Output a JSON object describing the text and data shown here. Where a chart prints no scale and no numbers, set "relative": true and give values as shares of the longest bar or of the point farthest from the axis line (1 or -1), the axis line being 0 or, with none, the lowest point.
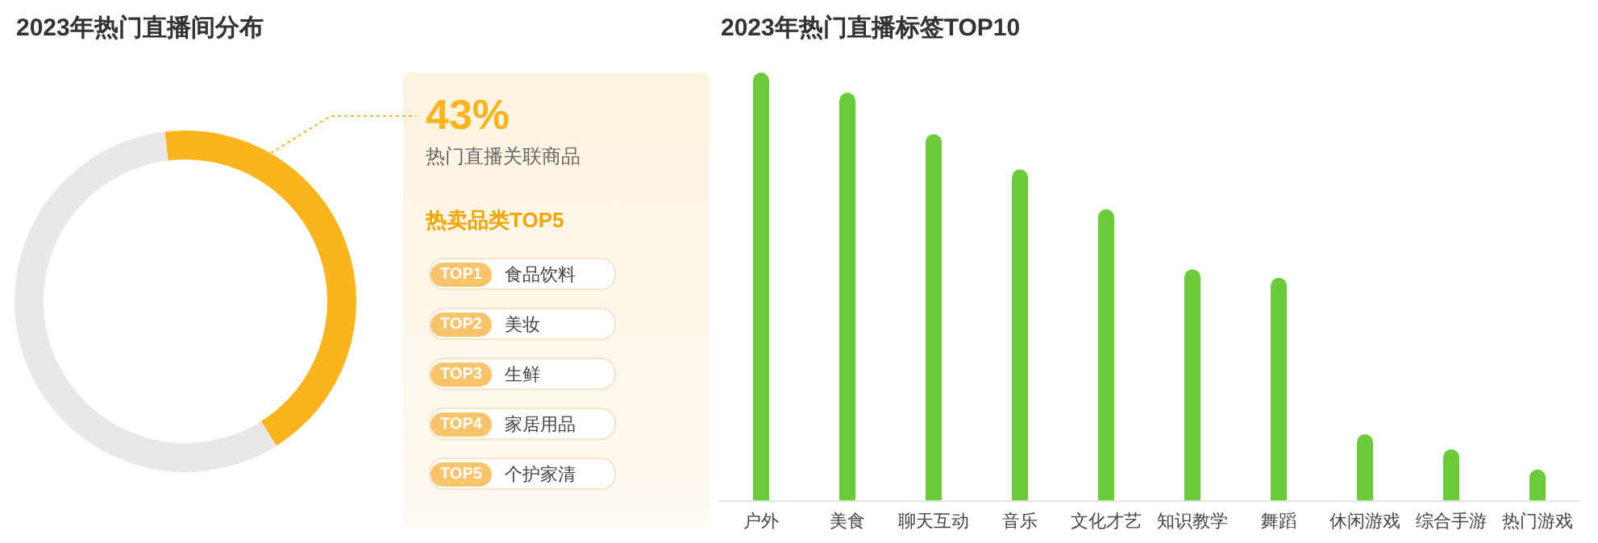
{
  "chart_data": [
    {
      "type": "donut",
      "title": "2023年热门直播间分布",
      "categories": [
        "热门直播关联商品",
        null
      ],
      "values": [
        43,
        57
      ],
      "colors": [
        "#fbb41e",
        "#e8e8e8"
      ],
      "value_labels": [
        "43%",
        null
      ]
    },
    {
      "type": "other",
      "title": "热卖品类TOP5",
      "categories": [
        "TOP1",
        "TOP2",
        "TOP3",
        "TOP4",
        "TOP5"
      ],
      "annotations": [
        "食品饮料",
        "美妆",
        "生鲜",
        "家居用品",
        "个护家清"
      ]
    },
    {
      "type": "bar",
      "title": "2023年热门直播标签TOP10",
      "relative": true,
      "categories": [
        "户外",
        "美食",
        "聊天互动",
        "音乐",
        "文化才艺",
        "知识教学",
        "舞蹈",
        "休闲游戏",
        "综合手游",
        "热门游戏"
      ],
      "values": [
        1,
        0.953,
        0.856,
        0.774,
        0.681,
        0.541,
        0.521,
        0.156,
        0.121,
        0.074
      ],
      "color": "#6ccb3a",
      "grid": false,
      "legend": false
    }
  ]
}
